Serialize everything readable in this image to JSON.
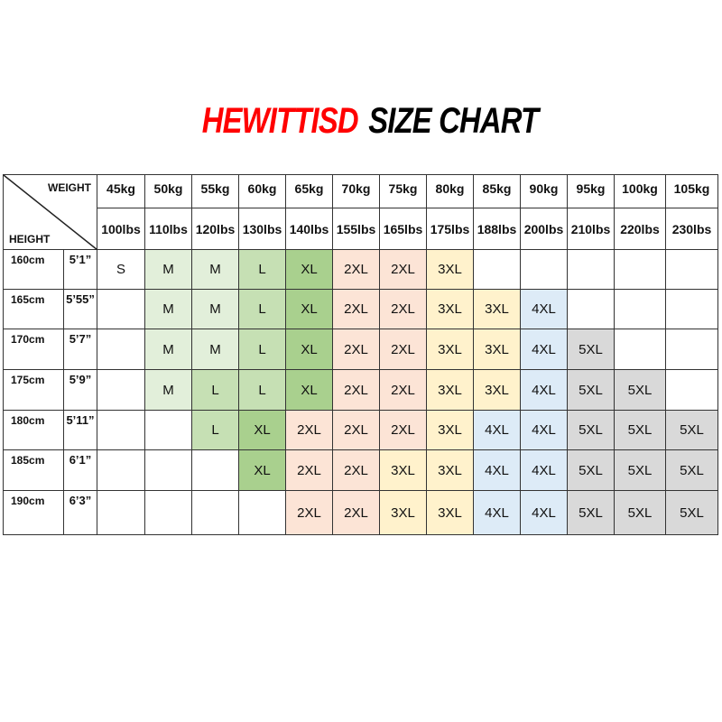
{
  "title": {
    "brand": "HEWITTISD",
    "text": "SIZE CHART"
  },
  "header": {
    "weight_label": "WEIGHT",
    "height_label": "HEIGHT",
    "kg": [
      "45kg",
      "50kg",
      "55kg",
      "60kg",
      "65kg",
      "70kg",
      "75kg",
      "80kg",
      "85kg",
      "90kg",
      "95kg",
      "100kg",
      "105kg"
    ],
    "lbs": [
      "100lbs",
      "110lbs",
      "120lbs",
      "130lbs",
      "140lbs",
      "155lbs",
      "165lbs",
      "175lbs",
      "188lbs",
      "200lbs",
      "210lbs",
      "220lbs",
      "230lbs"
    ]
  },
  "rows": [
    {
      "cm": "160cm",
      "ft": "5’1”",
      "sizes": [
        "S",
        "M",
        "M",
        "L",
        "XL",
        "2XL",
        "2XL",
        "3XL",
        "",
        "",
        "",
        "",
        ""
      ]
    },
    {
      "cm": "165cm",
      "ft": "5’55”",
      "sizes": [
        "",
        "M",
        "M",
        "L",
        "XL",
        "2XL",
        "2XL",
        "3XL",
        "3XL",
        "4XL",
        "",
        "",
        ""
      ]
    },
    {
      "cm": "170cm",
      "ft": "5’7”",
      "sizes": [
        "",
        "M",
        "M",
        "L",
        "XL",
        "2XL",
        "2XL",
        "3XL",
        "3XL",
        "4XL",
        "5XL",
        "",
        ""
      ]
    },
    {
      "cm": "175cm",
      "ft": "5’9”",
      "sizes": [
        "",
        "M",
        "L",
        "L",
        "XL",
        "2XL",
        "2XL",
        "3XL",
        "3XL",
        "4XL",
        "5XL",
        "5XL",
        ""
      ]
    },
    {
      "cm": "180cm",
      "ft": "5’11”",
      "sizes": [
        "",
        "",
        "L",
        "XL",
        "2XL",
        "2XL",
        "2XL",
        "3XL",
        "4XL",
        "4XL",
        "5XL",
        "5XL",
        "5XL"
      ]
    },
    {
      "cm": "185cm",
      "ft": "6’1”",
      "sizes": [
        "",
        "",
        "",
        "XL",
        "2XL",
        "2XL",
        "3XL",
        "3XL",
        "4XL",
        "4XL",
        "5XL",
        "5XL",
        "5XL"
      ]
    },
    {
      "cm": "190cm",
      "ft": "6’3”",
      "sizes": [
        "",
        "",
        "",
        "",
        "2XL",
        "2XL",
        "3XL",
        "3XL",
        "4XL",
        "4XL",
        "5XL",
        "5XL",
        "5XL"
      ]
    }
  ],
  "size_colors": {
    "S": "#ffffff",
    "M": "#e2efda",
    "L": "#c6e0b4",
    "XL": "#a9d08e",
    "2XL": "#fce4d6",
    "3XL": "#fff2cc",
    "4XL": "#ddebf7",
    "5XL": "#d9d9d9"
  },
  "title_colors": {
    "brand": "#ff0000",
    "text": "#000000"
  }
}
